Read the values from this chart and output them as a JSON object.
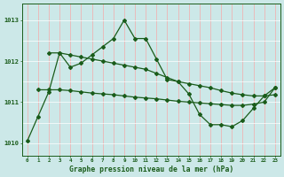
{
  "title": "Graphe pression niveau de la mer (hPa)",
  "background_color": "#cce8e8",
  "line_color": "#1a5c1a",
  "ylim": [
    1009.7,
    1013.4
  ],
  "xlim": [
    -0.5,
    23.5
  ],
  "yticks": [
    1010,
    1011,
    1012,
    1013
  ],
  "xticks": [
    0,
    1,
    2,
    3,
    4,
    5,
    6,
    7,
    8,
    9,
    10,
    11,
    12,
    13,
    14,
    15,
    16,
    17,
    18,
    19,
    20,
    21,
    22,
    23
  ],
  "series_jagged": {
    "x": [
      0,
      1,
      2,
      3,
      4,
      5,
      6,
      7,
      8,
      9,
      10,
      11,
      12,
      13,
      14,
      15,
      16,
      17,
      18,
      19,
      20,
      21,
      22,
      23
    ],
    "y": [
      1010.05,
      1010.65,
      1011.25,
      1012.2,
      1011.85,
      1011.95,
      1012.15,
      1012.35,
      1012.55,
      1013.0,
      1012.55,
      1012.55,
      1012.05,
      1011.55,
      1011.5,
      1011.2,
      1010.7,
      1010.45,
      1010.45,
      1010.4,
      1010.55,
      1010.85,
      1011.15,
      1011.35
    ]
  },
  "series_linear1": {
    "x": [
      2,
      3,
      4,
      5,
      6,
      7,
      8,
      9,
      10,
      11,
      12,
      13,
      14,
      15,
      16,
      17,
      18,
      19,
      20,
      21,
      22,
      23
    ],
    "y": [
      1012.2,
      1012.2,
      1012.15,
      1012.1,
      1012.05,
      1012.0,
      1011.95,
      1011.9,
      1011.85,
      1011.8,
      1011.7,
      1011.6,
      1011.5,
      1011.45,
      1011.4,
      1011.35,
      1011.28,
      1011.22,
      1011.18,
      1011.15,
      1011.15,
      1011.18
    ]
  },
  "series_linear2": {
    "x": [
      1,
      2,
      3,
      4,
      5,
      6,
      7,
      8,
      9,
      10,
      11,
      12,
      13,
      14,
      15,
      16,
      17,
      18,
      19,
      20,
      21,
      22,
      23
    ],
    "y": [
      1011.3,
      1011.3,
      1011.3,
      1011.28,
      1011.25,
      1011.22,
      1011.2,
      1011.18,
      1011.15,
      1011.12,
      1011.1,
      1011.08,
      1011.05,
      1011.02,
      1011.0,
      1010.98,
      1010.96,
      1010.94,
      1010.92,
      1010.92,
      1010.95,
      1011.0,
      1011.35
    ]
  }
}
